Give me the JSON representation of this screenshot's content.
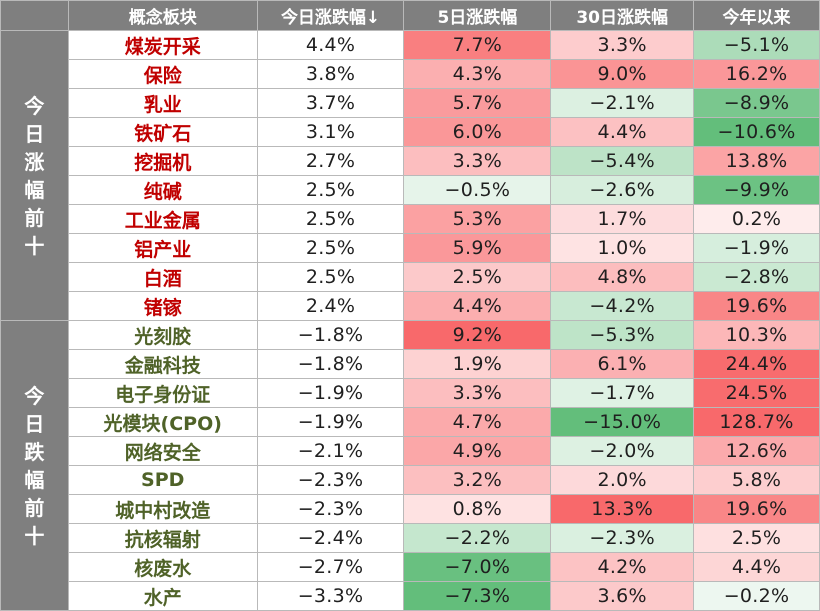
{
  "header": {
    "concept": "概念板块",
    "day": "今日涨跌幅↓",
    "d5": "5日涨跌幅",
    "d30": "30日涨跌幅",
    "ytd": "今年以来"
  },
  "groups": {
    "top_label": "今日涨幅前十",
    "bottom_label": "今日跌幅前十"
  },
  "top_rows": [
    {
      "name": "煤炭开采",
      "day": "4.4%",
      "d5": "7.7%",
      "d30": "3.3%",
      "ytd": "−5.1%"
    },
    {
      "name": "保险",
      "day": "3.8%",
      "d5": "4.3%",
      "d30": "9.0%",
      "ytd": "16.2%"
    },
    {
      "name": "乳业",
      "day": "3.7%",
      "d5": "5.7%",
      "d30": "−2.1%",
      "ytd": "−8.9%"
    },
    {
      "name": "铁矿石",
      "day": "3.1%",
      "d5": "6.0%",
      "d30": "4.4%",
      "ytd": "−10.6%"
    },
    {
      "name": "挖掘机",
      "day": "2.7%",
      "d5": "3.3%",
      "d30": "−5.4%",
      "ytd": "13.8%"
    },
    {
      "name": "纯碱",
      "day": "2.5%",
      "d5": "−0.5%",
      "d30": "−2.6%",
      "ytd": "−9.9%"
    },
    {
      "name": "工业金属",
      "day": "2.5%",
      "d5": "5.3%",
      "d30": "1.7%",
      "ytd": "0.2%"
    },
    {
      "name": "铝产业",
      "day": "2.5%",
      "d5": "5.9%",
      "d30": "1.0%",
      "ytd": "−1.9%"
    },
    {
      "name": "白酒",
      "day": "2.5%",
      "d5": "2.5%",
      "d30": "4.8%",
      "ytd": "−2.8%"
    },
    {
      "name": "锗镓",
      "day": "2.4%",
      "d5": "4.4%",
      "d30": "−4.2%",
      "ytd": "19.6%"
    }
  ],
  "bottom_rows": [
    {
      "name": "光刻胶",
      "day": "−1.8%",
      "d5": "9.2%",
      "d30": "−5.3%",
      "ytd": "10.3%"
    },
    {
      "name": "金融科技",
      "day": "−1.8%",
      "d5": "1.9%",
      "d30": "6.1%",
      "ytd": "24.4%"
    },
    {
      "name": "电子身份证",
      "day": "−1.9%",
      "d5": "3.3%",
      "d30": "−1.7%",
      "ytd": "24.5%"
    },
    {
      "name": "光模块(CPO)",
      "day": "−1.9%",
      "d5": "4.7%",
      "d30": "−15.0%",
      "ytd": "128.7%"
    },
    {
      "name": "网络安全",
      "day": "−2.1%",
      "d5": "4.9%",
      "d30": "−2.0%",
      "ytd": "12.6%"
    },
    {
      "name": "SPD",
      "day": "−2.3%",
      "d5": "3.2%",
      "d30": "2.0%",
      "ytd": "5.8%"
    },
    {
      "name": "城中村改造",
      "day": "−2.3%",
      "d5": "0.8%",
      "d30": "13.3%",
      "ytd": "19.6%"
    },
    {
      "name": "抗核辐射",
      "day": "−2.4%",
      "d5": "−2.2%",
      "d30": "−2.3%",
      "ytd": "2.5%"
    },
    {
      "name": "核废水",
      "day": "−2.7%",
      "d5": "−7.0%",
      "d30": "4.2%",
      "ytd": "4.4%"
    },
    {
      "name": "水产",
      "day": "−3.3%",
      "d5": "−7.3%",
      "d30": "3.6%",
      "ytd": "−0.2%"
    }
  ],
  "colors": {
    "header_bg": "#7f7f7f",
    "gain_text": "#c00000",
    "loss_text": "#4f6228",
    "positive_scale_end": "#f8696b",
    "negative_scale_end": "#63be7b"
  }
}
